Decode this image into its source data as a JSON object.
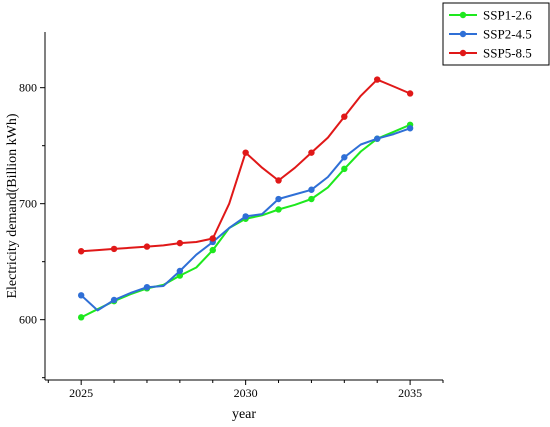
{
  "chart_data": {
    "type": "line",
    "title": "",
    "xlabel": "year",
    "ylabel": "Electricity demand(Billion kWh)",
    "xlim": [
      2023.9,
      2036.0
    ],
    "ylim": [
      548,
      848
    ],
    "xticks": [
      2025,
      2030,
      2035
    ],
    "yticks": [
      600,
      700,
      800
    ],
    "grid": false,
    "legend_position": "top-right",
    "series": [
      {
        "name": "SSP1-2.6",
        "color": "#1ee81e",
        "x": [
          2025,
          2025.5,
          2026,
          2026.5,
          2027,
          2027.5,
          2028,
          2028.5,
          2029,
          2029.5,
          2030,
          2030.5,
          2031,
          2031.5,
          2032,
          2032.5,
          2033,
          2033.5,
          2034,
          2034.5,
          2035
        ],
        "y": [
          602,
          609,
          616,
          622,
          627,
          630,
          638,
          645,
          660,
          679,
          687,
          690,
          695,
          699,
          704,
          714,
          730,
          745,
          756,
          762,
          768
        ],
        "markers": [
          1,
          0,
          1,
          0,
          1,
          0,
          1,
          0,
          1,
          0,
          1,
          0,
          1,
          0,
          1,
          0,
          1,
          0,
          1,
          0,
          1
        ]
      },
      {
        "name": "SSP2-4.5",
        "color": "#2f6fd6",
        "x": [
          2025,
          2025.5,
          2026,
          2026.5,
          2027,
          2027.5,
          2028,
          2028.5,
          2029,
          2029.5,
          2030,
          2030.5,
          2031,
          2031.5,
          2032,
          2032.5,
          2033,
          2033.5,
          2034,
          2034.5,
          2035
        ],
        "y": [
          621,
          608,
          617,
          623,
          628,
          629,
          642,
          656,
          667,
          679,
          689,
          691,
          704,
          708,
          712,
          723,
          740,
          751,
          756,
          760,
          765
        ],
        "markers": [
          1,
          0,
          1,
          0,
          1,
          0,
          1,
          0,
          1,
          0,
          1,
          0,
          1,
          0,
          1,
          0,
          1,
          0,
          1,
          0,
          1
        ]
      },
      {
        "name": "SSP5-8.5",
        "color": "#e01818",
        "x": [
          2025,
          2025.5,
          2026,
          2026.5,
          2027,
          2027.5,
          2028,
          2028.5,
          2029,
          2029.5,
          2030,
          2030.5,
          2031,
          2031.5,
          2032,
          2032.5,
          2033,
          2033.5,
          2034,
          2034.5,
          2035
        ],
        "y": [
          659,
          660,
          661,
          662,
          663,
          664,
          666,
          667,
          670,
          700,
          744,
          731,
          720,
          731,
          744,
          757,
          775,
          793,
          807,
          801,
          795
        ],
        "markers": [
          1,
          0,
          1,
          0,
          1,
          0,
          1,
          0,
          1,
          0,
          1,
          0,
          1,
          0,
          1,
          0,
          1,
          0,
          1,
          0,
          1
        ]
      }
    ]
  }
}
